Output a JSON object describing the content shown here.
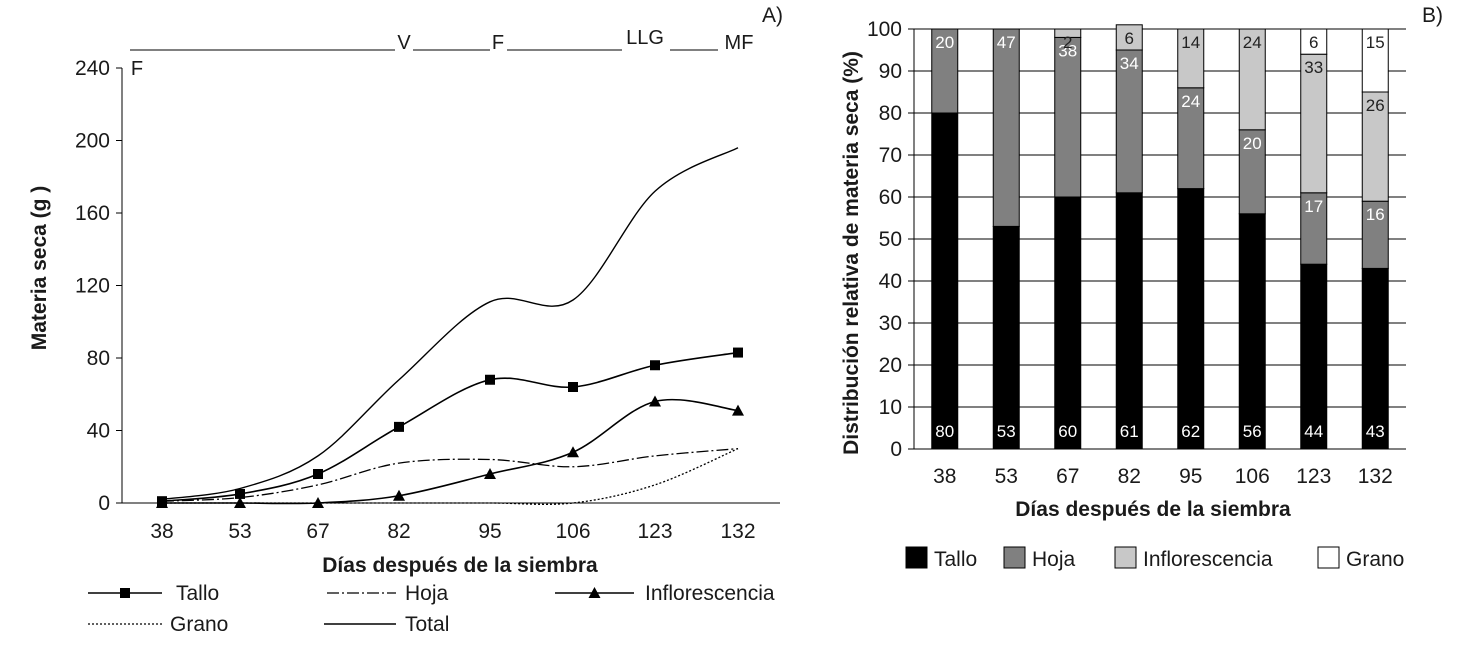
{
  "chart_data": [
    {
      "panel": "A)",
      "type": "line",
      "xlabel": "Días después de la siembra",
      "ylabel": "Materia seca (g )",
      "categories": [
        "38",
        "53",
        "67",
        "82",
        "95",
        "106",
        "123",
        "132"
      ],
      "ylim": [
        0,
        240
      ],
      "yticks": [
        "0",
        "40",
        "80",
        "120",
        "160",
        "200",
        "240"
      ],
      "phenology": [
        "F",
        "V",
        "F",
        "LLG",
        "MF"
      ],
      "series": [
        {
          "name": "Tallo",
          "marker": "square",
          "values": [
            1,
            5,
            16,
            42,
            68,
            64,
            76,
            83
          ]
        },
        {
          "name": "Hoja",
          "marker": "none",
          "values": [
            1,
            3,
            10,
            22,
            24,
            20,
            26,
            30
          ]
        },
        {
          "name": "Inflorescencia",
          "marker": "triangle",
          "values": [
            0,
            0,
            0,
            4,
            16,
            28,
            56,
            51
          ]
        },
        {
          "name": "Grano",
          "marker": "none",
          "values": [
            0,
            0,
            0,
            0,
            0,
            0,
            10,
            30
          ]
        },
        {
          "name": "Total",
          "marker": "none",
          "values": [
            2,
            8,
            26,
            68,
            111,
            112,
            172,
            196
          ]
        }
      ]
    },
    {
      "panel": "B)",
      "type": "bar",
      "stacked": true,
      "xlabel": "Días después de la siembra",
      "ylabel": "Distribución relativa de materia seca (%)",
      "categories": [
        "38",
        "53",
        "67",
        "82",
        "95",
        "106",
        "123",
        "132"
      ],
      "ylim": [
        0,
        100
      ],
      "yticks": [
        "0",
        "10",
        "20",
        "30",
        "40",
        "50",
        "60",
        "70",
        "80",
        "90",
        "100"
      ],
      "series": [
        {
          "name": "Tallo",
          "color": "#000000",
          "values": [
            80,
            53,
            60,
            61,
            62,
            56,
            44,
            43
          ],
          "labels": [
            "80",
            "53",
            "60",
            "61",
            "62",
            "56",
            "44",
            "43"
          ]
        },
        {
          "name": "Hoja",
          "color": "#808080",
          "values": [
            20,
            47,
            38,
            34,
            24,
            20,
            17,
            16
          ],
          "labels": [
            "20",
            "47",
            "38",
            "34",
            "24",
            "20",
            "17",
            "16"
          ]
        },
        {
          "name": "Inflorescencia",
          "color": "#c8c8c8",
          "values": [
            0,
            0,
            2,
            6,
            14,
            24,
            33,
            26
          ],
          "labels": [
            "",
            "",
            "2",
            "6",
            "14",
            "24",
            "33",
            "26"
          ]
        },
        {
          "name": "Grano",
          "color": "#ffffff",
          "values": [
            0,
            0,
            0,
            0,
            0,
            0,
            6,
            15
          ],
          "labels": [
            "",
            "",
            "",
            "",
            "",
            "",
            "6",
            "15"
          ]
        }
      ]
    }
  ]
}
